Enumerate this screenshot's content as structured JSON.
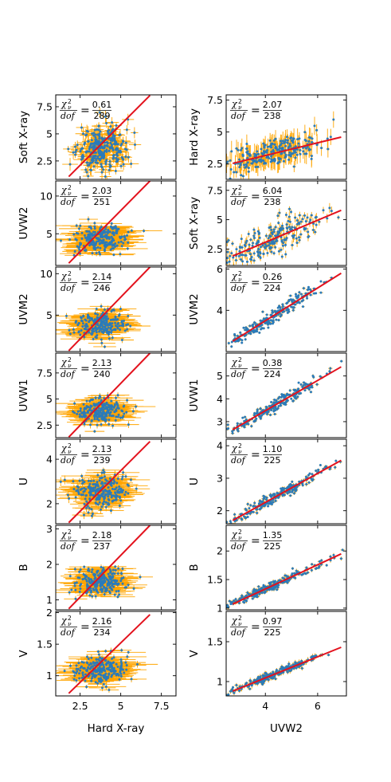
{
  "figure": {
    "stat_symbol": "χ",
    "stat_sub": "ν",
    "stat_sup": "2",
    "stat_den": "dof",
    "stat_eq": "="
  },
  "colors": {
    "point": "#2b7bb9",
    "errorbar": "#ffa500",
    "fit": "#e3121d"
  },
  "chart_data": [
    {
      "type": "scatter",
      "column": 0,
      "row": 0,
      "xlabel": "",
      "ylabel": "Soft X-ray",
      "xlim": [
        1.0,
        8.4
      ],
      "ylim": [
        0.8,
        8.6
      ],
      "xticks": [
        2.5,
        5.0,
        7.5
      ],
      "yticks": [
        2.5,
        5.0,
        7.5
      ],
      "chi2_num": "0.61",
      "chi2_den": "289",
      "fit_line": {
        "x": [
          1.8,
          6.8
        ],
        "y": [
          1.05,
          8.55
        ]
      },
      "points": {
        "n": 289,
        "x_center": 3.8,
        "x_sd": 0.75,
        "y_center": 3.7,
        "y_sd": 1.1,
        "x_err": 0.35,
        "y_err": 0.45
      }
    },
    {
      "type": "scatter",
      "column": 0,
      "row": 1,
      "xlabel": "",
      "ylabel": "UVW2",
      "xlim": [
        1.0,
        8.4
      ],
      "ylim": [
        0.8,
        12.0
      ],
      "xticks": [
        2.5,
        5.0,
        7.5
      ],
      "yticks": [
        5,
        10
      ],
      "chi2_num": "2.03",
      "chi2_den": "251",
      "fit_line": {
        "x": [
          1.8,
          6.8
        ],
        "y": [
          1.1,
          12.0
        ]
      },
      "points": {
        "n": 251,
        "x_center": 3.8,
        "x_sd": 0.8,
        "y_center": 4.3,
        "y_sd": 0.9,
        "x_err": 0.9,
        "y_err": 0.3
      }
    },
    {
      "type": "scatter",
      "column": 0,
      "row": 2,
      "xlabel": "",
      "ylabel": "UVM2",
      "xlim": [
        1.0,
        8.4
      ],
      "ylim": [
        0.6,
        10.8
      ],
      "xticks": [
        2.5,
        5.0,
        7.5
      ],
      "yticks": [
        5,
        10
      ],
      "chi2_num": "2.14",
      "chi2_den": "246",
      "fit_line": {
        "x": [
          1.8,
          6.8
        ],
        "y": [
          0.7,
          10.8
        ]
      },
      "points": {
        "n": 246,
        "x_center": 3.8,
        "x_sd": 0.8,
        "y_center": 3.9,
        "y_sd": 0.85,
        "x_err": 0.9,
        "y_err": 0.3
      }
    },
    {
      "type": "scatter",
      "column": 0,
      "row": 3,
      "xlabel": "",
      "ylabel": "UVW1",
      "xlim": [
        1.0,
        8.4
      ],
      "ylim": [
        1.3,
        9.4
      ],
      "xticks": [
        2.5,
        5.0,
        7.5
      ],
      "yticks": [
        2.5,
        5.0,
        7.5
      ],
      "chi2_num": "2.13",
      "chi2_den": "240",
      "fit_line": {
        "x": [
          1.8,
          6.8
        ],
        "y": [
          1.35,
          9.4
        ]
      },
      "points": {
        "n": 240,
        "x_center": 3.8,
        "x_sd": 0.8,
        "y_center": 3.8,
        "y_sd": 0.65,
        "x_err": 0.9,
        "y_err": 0.25
      }
    },
    {
      "type": "scatter",
      "column": 0,
      "row": 4,
      "xlabel": "",
      "ylabel": "U",
      "xlim": [
        1.0,
        8.4
      ],
      "ylim": [
        1.1,
        4.9
      ],
      "xticks": [
        2.5,
        5.0,
        7.5
      ],
      "yticks": [
        2,
        4
      ],
      "chi2_num": "2.13",
      "chi2_den": "239",
      "fit_line": {
        "x": [
          1.8,
          6.8
        ],
        "y": [
          1.15,
          4.8
        ]
      },
      "points": {
        "n": 239,
        "x_center": 3.8,
        "x_sd": 0.8,
        "y_center": 2.55,
        "y_sd": 0.4,
        "x_err": 0.9,
        "y_err": 0.15
      }
    },
    {
      "type": "scatter",
      "column": 0,
      "row": 5,
      "xlabel": "",
      "ylabel": "B",
      "xlim": [
        1.0,
        8.4
      ],
      "ylim": [
        0.72,
        3.1
      ],
      "xticks": [
        2.5,
        5.0,
        7.5
      ],
      "yticks": [
        1,
        2,
        3
      ],
      "chi2_num": "2.18",
      "chi2_den": "237",
      "fit_line": {
        "x": [
          1.8,
          6.8
        ],
        "y": [
          0.75,
          3.1
        ]
      },
      "points": {
        "n": 237,
        "x_center": 3.8,
        "x_sd": 0.8,
        "y_center": 1.5,
        "y_sd": 0.2,
        "x_err": 0.9,
        "y_err": 0.07
      }
    },
    {
      "type": "scatter",
      "column": 0,
      "row": 6,
      "xlabel": "Hard X-ray",
      "ylabel": "V",
      "xlim": [
        1.0,
        8.4
      ],
      "ylim": [
        0.68,
        2.02
      ],
      "xticks": [
        2.5,
        5.0,
        7.5
      ],
      "yticks": [
        1.0,
        1.5,
        2.0
      ],
      "chi2_num": "2.16",
      "chi2_den": "234",
      "fit_line": {
        "x": [
          1.8,
          6.8
        ],
        "y": [
          0.72,
          1.97
        ]
      },
      "points": {
        "n": 234,
        "x_center": 3.8,
        "x_sd": 0.8,
        "y_center": 1.1,
        "y_sd": 0.11,
        "x_err": 0.9,
        "y_err": 0.04
      }
    },
    {
      "type": "scatter",
      "column": 1,
      "row": 0,
      "xlabel": "",
      "ylabel": "Hard X-ray",
      "xlim": [
        2.5,
        7.1
      ],
      "ylim": [
        1.3,
        7.9
      ],
      "xticks": [
        4,
        6
      ],
      "yticks": [
        2.5,
        5.0,
        7.5
      ],
      "chi2_num": "2.07",
      "chi2_den": "238",
      "fit_line": {
        "x": [
          2.75,
          6.9
        ],
        "y": [
          2.55,
          4.6
        ]
      },
      "points": {
        "n": 238,
        "x_center": 4.3,
        "x_sd": 1.0,
        "y_center": 3.8,
        "y_sd": 0.8,
        "x_err": 0.05,
        "y_err": 0.6
      }
    },
    {
      "type": "scatter",
      "column": 1,
      "row": 1,
      "xlabel": "",
      "ylabel": "Soft X-ray",
      "xlim": [
        2.5,
        7.1
      ],
      "ylim": [
        1.1,
        8.3
      ],
      "xticks": [
        4,
        6
      ],
      "yticks": [
        2.5,
        5.0,
        7.5
      ],
      "chi2_num": "6.04",
      "chi2_den": "238",
      "fit_line": {
        "x": [
          2.75,
          6.9
        ],
        "y": [
          1.9,
          5.8
        ]
      },
      "points": {
        "n": 238,
        "x_center": 4.3,
        "x_sd": 1.0,
        "y_center": 3.7,
        "y_sd": 1.1,
        "x_err": 0.05,
        "y_err": 0.3
      }
    },
    {
      "type": "scatter",
      "column": 1,
      "row": 2,
      "xlabel": "",
      "ylabel": "UVM2",
      "xlim": [
        2.5,
        7.1
      ],
      "ylim": [
        2.0,
        6.1
      ],
      "xticks": [
        4,
        6
      ],
      "yticks": [
        4,
        6
      ],
      "chi2_num": "0.26",
      "chi2_den": "224",
      "fit_line": {
        "x": [
          2.75,
          6.9
        ],
        "y": [
          2.5,
          5.8
        ]
      },
      "points": {
        "n": 224,
        "x_center": 4.3,
        "x_sd": 1.0,
        "y_center": 3.7,
        "y_sd": 0.8,
        "x_err": 0.06,
        "y_err": 0.06
      }
    },
    {
      "type": "scatter",
      "column": 1,
      "row": 3,
      "xlabel": "",
      "ylabel": "UVW1",
      "xlim": [
        2.5,
        7.1
      ],
      "ylim": [
        2.3,
        6.0
      ],
      "xticks": [
        4,
        6
      ],
      "yticks": [
        3,
        4,
        5
      ],
      "chi2_num": "0.38",
      "chi2_den": "224",
      "fit_line": {
        "x": [
          2.75,
          6.9
        ],
        "y": [
          2.65,
          5.4
        ]
      },
      "points": {
        "n": 224,
        "x_center": 4.3,
        "x_sd": 1.0,
        "y_center": 3.7,
        "y_sd": 0.7,
        "x_err": 0.06,
        "y_err": 0.06
      }
    },
    {
      "type": "scatter",
      "column": 1,
      "row": 4,
      "xlabel": "",
      "ylabel": "U",
      "xlim": [
        2.5,
        7.1
      ],
      "ylim": [
        1.6,
        4.2
      ],
      "xticks": [
        4,
        6
      ],
      "yticks": [
        2,
        3,
        4
      ],
      "chi2_num": "1.10",
      "chi2_den": "225",
      "fit_line": {
        "x": [
          2.75,
          6.9
        ],
        "y": [
          1.7,
          3.55
        ]
      },
      "points": {
        "n": 225,
        "x_center": 4.3,
        "x_sd": 1.0,
        "y_center": 2.5,
        "y_sd": 0.45,
        "x_err": 0.06,
        "y_err": 0.05
      }
    },
    {
      "type": "scatter",
      "column": 1,
      "row": 5,
      "xlabel": "",
      "ylabel": "B",
      "xlim": [
        2.5,
        7.1
      ],
      "ylim": [
        0.97,
        2.45
      ],
      "xticks": [
        4,
        6
      ],
      "yticks": [
        1.0,
        1.5,
        2.0
      ],
      "chi2_num": "1.35",
      "chi2_den": "225",
      "fit_line": {
        "x": [
          2.75,
          6.9
        ],
        "y": [
          1.07,
          1.95
        ]
      },
      "points": {
        "n": 225,
        "x_center": 4.3,
        "x_sd": 1.0,
        "y_center": 1.4,
        "y_sd": 0.2,
        "x_err": 0.06,
        "y_err": 0.03
      }
    },
    {
      "type": "scatter",
      "column": 1,
      "row": 6,
      "xlabel": "UVW2",
      "ylabel": "V",
      "xlim": [
        2.5,
        7.1
      ],
      "ylim": [
        0.82,
        1.88
      ],
      "xticks": [
        4,
        6
      ],
      "yticks": [
        1.0,
        1.5
      ],
      "chi2_num": "0.97",
      "chi2_den": "225",
      "fit_line": {
        "x": [
          2.75,
          6.9
        ],
        "y": [
          0.88,
          1.43
        ]
      },
      "points": {
        "n": 225,
        "x_center": 4.3,
        "x_sd": 1.0,
        "y_center": 1.12,
        "y_sd": 0.12,
        "x_err": 0.06,
        "y_err": 0.025
      }
    }
  ]
}
